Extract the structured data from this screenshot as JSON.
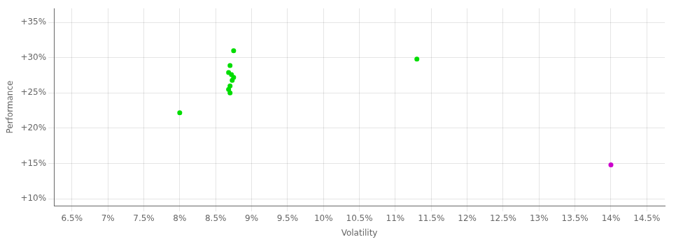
{
  "chart_data": {
    "type": "scatter",
    "xlabel": "Volatility",
    "ylabel": "Performance",
    "series": [
      {
        "color": "#00dd00",
        "x": [
          0.0875,
          0.087,
          0.0868,
          0.0872,
          0.0875,
          0.0873,
          0.087,
          0.0868,
          0.087,
          0.08,
          0.113
        ],
        "values": [
          0.31,
          0.289,
          0.279,
          0.276,
          0.272,
          0.268,
          0.26,
          0.255,
          0.25,
          0.222,
          0.298
        ]
      },
      {
        "color": "#cc00cc",
        "x": [
          0.14
        ],
        "values": [
          0.148
        ]
      }
    ],
    "xlim": [
      0.0625,
      0.1475
    ],
    "ylim": [
      0.09,
      0.37
    ],
    "xticks": [
      {
        "value": 0.065,
        "label": "6.5%"
      },
      {
        "value": 0.07,
        "label": "7%"
      },
      {
        "value": 0.075,
        "label": "7.5%"
      },
      {
        "value": 0.08,
        "label": "8%"
      },
      {
        "value": 0.085,
        "label": "8.5%"
      },
      {
        "value": 0.09,
        "label": "9%"
      },
      {
        "value": 0.095,
        "label": "9.5%"
      },
      {
        "value": 0.1,
        "label": "10%"
      },
      {
        "value": 0.105,
        "label": "10.5%"
      },
      {
        "value": 0.11,
        "label": "11%"
      },
      {
        "value": 0.115,
        "label": "11.5%"
      },
      {
        "value": 0.12,
        "label": "12%"
      },
      {
        "value": 0.125,
        "label": "12.5%"
      },
      {
        "value": 0.13,
        "label": "13%"
      },
      {
        "value": 0.135,
        "label": "13.5%"
      },
      {
        "value": 0.14,
        "label": "14%"
      },
      {
        "value": 0.145,
        "label": "14.5%"
      }
    ],
    "yticks": [
      {
        "value": 0.1,
        "label": "+10%"
      },
      {
        "value": 0.15,
        "label": "+15%"
      },
      {
        "value": 0.2,
        "label": "+20%"
      },
      {
        "value": 0.25,
        "label": "+25%"
      },
      {
        "value": 0.3,
        "label": "+30%"
      },
      {
        "value": 0.35,
        "label": "+35%"
      }
    ],
    "grid": true
  }
}
